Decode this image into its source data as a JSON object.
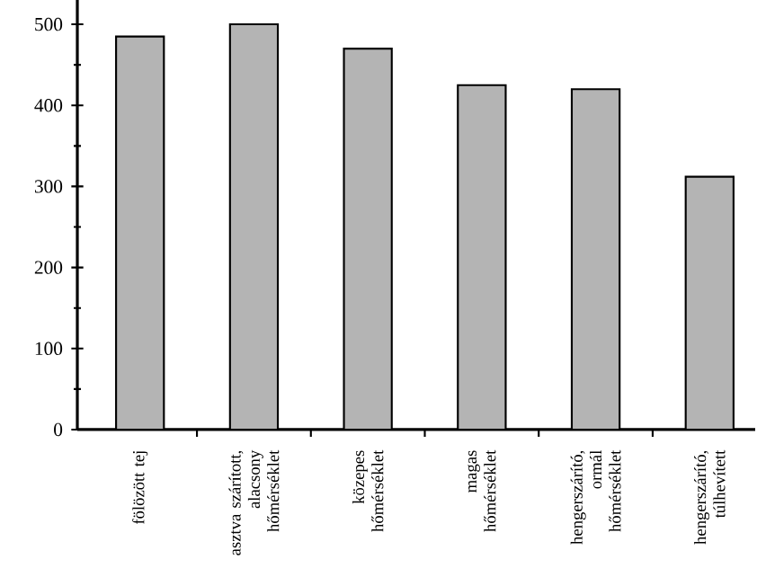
{
  "chart_data": {
    "type": "bar",
    "categories": [
      "fölözött tej",
      "asztva szárított, alacsony hőmérséklet",
      "közepes hőmérséklet",
      "magas hőmérséklet",
      "hengerszárító, ormál hőmérséklet",
      "hengerszárító, túlhevített"
    ],
    "values": [
      485,
      500,
      470,
      425,
      420,
      312
    ],
    "color": "#b4b4b4",
    "ylim": [
      0,
      530
    ],
    "yticks": [
      0,
      100,
      200,
      300,
      400,
      500
    ],
    "grid": false
  }
}
